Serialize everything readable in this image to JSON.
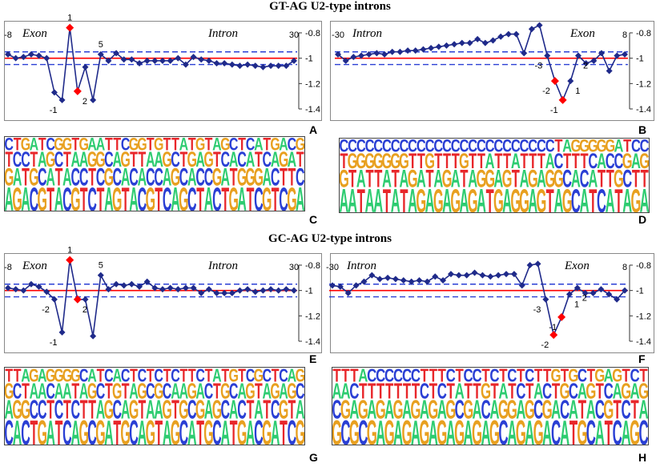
{
  "titles": {
    "top": "GT-AG U2-type introns",
    "bottom": "GC-AG U2-type introns"
  },
  "colors": {
    "line": "#1f2a8a",
    "marker": "#1f2a8a",
    "highlight": "#ff0000",
    "mean_line": "#ff0000",
    "band": "#2a3fd4",
    "A": "#2ecc71",
    "C": "#2a3fd4",
    "G": "#e8a020",
    "T": "#e8262a"
  },
  "chart_data": [
    {
      "panel": "A",
      "type": "line",
      "region_left": "Exon",
      "region_right": "Intron",
      "ylim": [
        -1.4,
        -0.8
      ],
      "yticks": [
        -0.8,
        -1,
        -1.2,
        -1.4
      ],
      "mean": -1.0,
      "band": [
        -0.95,
        -1.05
      ],
      "x": [
        -8,
        -7,
        -6,
        -5,
        -4,
        -3,
        -2,
        -1,
        1,
        2,
        3,
        4,
        5,
        6,
        7,
        8,
        9,
        10,
        11,
        12,
        13,
        14,
        15,
        16,
        17,
        18,
        19,
        20,
        21,
        22,
        23,
        24,
        25,
        26,
        27,
        28,
        29,
        30
      ],
      "y": [
        -0.97,
        -1.0,
        -0.99,
        -0.97,
        -0.98,
        -1.0,
        -1.27,
        -1.33,
        -0.76,
        -1.26,
        -1.07,
        -1.33,
        -0.97,
        -1.02,
        -0.96,
        -1.01,
        -1.01,
        -1.04,
        -1.02,
        -1.02,
        -1.02,
        -1.02,
        -1.0,
        -1.05,
        -0.99,
        -1.01,
        -1.02,
        -1.04,
        -1.04,
        -1.05,
        -1.06,
        -1.05,
        -1.06,
        -1.07,
        -1.06,
        -1.06,
        -1.06,
        -1.02
      ],
      "highlighted_x": [
        1,
        2
      ],
      "point_labels": [
        {
          "x": -8,
          "text": "-8"
        },
        {
          "x": -1,
          "text": "-1"
        },
        {
          "x": 1,
          "text": "1"
        },
        {
          "x": 2,
          "text": "2"
        },
        {
          "x": 5,
          "text": "5"
        },
        {
          "x": 30,
          "text": "30"
        }
      ]
    },
    {
      "panel": "B",
      "type": "line",
      "region_left": "Intron",
      "region_right": "Exon",
      "ylim": [
        -1.4,
        -0.8
      ],
      "yticks": [
        -0.8,
        -1,
        -1.2,
        -1.4
      ],
      "mean": -1.0,
      "band": [
        -0.95,
        -1.05
      ],
      "x": [
        -30,
        -29,
        -28,
        -27,
        -26,
        -25,
        -24,
        -23,
        -22,
        -21,
        -20,
        -19,
        -18,
        -17,
        -16,
        -15,
        -14,
        -13,
        -12,
        -11,
        -10,
        -9,
        -8,
        -7,
        -6,
        -5,
        -4,
        -3,
        -2,
        -1,
        1,
        2,
        3,
        4,
        5,
        6,
        7,
        8
      ],
      "y": [
        -0.97,
        -1.02,
        -0.99,
        -0.98,
        -0.97,
        -0.96,
        -0.97,
        -0.95,
        -0.95,
        -0.94,
        -0.94,
        -0.93,
        -0.92,
        -0.91,
        -0.9,
        -0.89,
        -0.88,
        -0.88,
        -0.85,
        -0.88,
        -0.86,
        -0.83,
        -0.81,
        -0.81,
        -0.96,
        -0.77,
        -0.74,
        -0.98,
        -1.18,
        -1.33,
        -1.18,
        -0.98,
        -1.04,
        -1.02,
        -0.96,
        -1.1,
        -0.98,
        -0.97
      ],
      "highlighted_x": [
        -2,
        -1
      ],
      "point_labels": [
        {
          "x": -30,
          "text": "-30"
        },
        {
          "x": -3,
          "text": "-3"
        },
        {
          "x": -2,
          "text": "-2"
        },
        {
          "x": -1,
          "text": "-1"
        },
        {
          "x": 1,
          "text": "1"
        },
        {
          "x": 2,
          "text": "2"
        },
        {
          "x": 8,
          "text": "8"
        }
      ]
    },
    {
      "panel": "E",
      "type": "line",
      "region_left": "Exon",
      "region_right": "Intron",
      "ylim": [
        -1.4,
        -0.8
      ],
      "yticks": [
        -0.8,
        -1,
        -1.2,
        -1.4
      ],
      "mean": -1.0,
      "band": [
        -0.95,
        -1.05
      ],
      "x": [
        -8,
        -7,
        -6,
        -5,
        -4,
        -3,
        -2,
        -1,
        1,
        2,
        3,
        4,
        5,
        6,
        7,
        8,
        9,
        10,
        11,
        12,
        13,
        14,
        15,
        16,
        17,
        18,
        19,
        20,
        21,
        22,
        23,
        24,
        25,
        26,
        27,
        28,
        29,
        30
      ],
      "y": [
        -0.98,
        -0.99,
        -1.0,
        -0.95,
        -0.97,
        -1.01,
        -1.07,
        -1.33,
        -0.76,
        -1.07,
        -1.07,
        -1.36,
        -0.88,
        -0.99,
        -0.95,
        -0.96,
        -0.95,
        -0.97,
        -0.93,
        -0.98,
        -0.99,
        -0.98,
        -0.99,
        -0.98,
        -0.98,
        -1.02,
        -0.99,
        -1.02,
        -1.02,
        -1.02,
        -1.0,
        -0.99,
        -1.01,
        -1.0,
        -0.99,
        -1.0,
        -0.99,
        -1.0
      ],
      "highlighted_x": [
        1,
        2
      ],
      "point_labels": [
        {
          "x": -8,
          "text": "-8"
        },
        {
          "x": -2,
          "text": "-2"
        },
        {
          "x": -1,
          "text": "-1"
        },
        {
          "x": 1,
          "text": "1"
        },
        {
          "x": 2,
          "text": "2"
        },
        {
          "x": 5,
          "text": "5"
        },
        {
          "x": 30,
          "text": "30"
        }
      ]
    },
    {
      "panel": "F",
      "type": "line",
      "region_left": "Intron",
      "region_right": "Exon",
      "ylim": [
        -1.4,
        -0.8
      ],
      "yticks": [
        -0.8,
        -1,
        -1.2,
        -1.4
      ],
      "mean": -1.0,
      "band": [
        -0.95,
        -1.05
      ],
      "x": [
        -30,
        -29,
        -28,
        -27,
        -26,
        -25,
        -24,
        -23,
        -22,
        -21,
        -20,
        -19,
        -18,
        -17,
        -16,
        -15,
        -14,
        -13,
        -12,
        -11,
        -10,
        -9,
        -8,
        -7,
        -6,
        -5,
        -4,
        -3,
        -2,
        -1,
        1,
        2,
        3,
        4,
        5,
        6,
        7,
        8
      ],
      "y": [
        -0.96,
        -0.97,
        -1.02,
        -0.96,
        -0.93,
        -0.88,
        -0.91,
        -0.9,
        -0.91,
        -0.92,
        -0.93,
        -0.92,
        -0.93,
        -0.89,
        -0.92,
        -0.87,
        -0.88,
        -0.88,
        -0.86,
        -0.88,
        -0.89,
        -0.88,
        -0.87,
        -0.87,
        -0.96,
        -0.8,
        -0.79,
        -1.07,
        -1.35,
        -1.21,
        -1.03,
        -0.98,
        -1.02,
        -1.02,
        -0.99,
        -1.03,
        -1.07,
        -1.0
      ],
      "highlighted_x": [
        -2,
        -1
      ],
      "point_labels": [
        {
          "x": -30,
          "text": "-30"
        },
        {
          "x": -3,
          "text": "-3"
        },
        {
          "x": -2,
          "text": "-2"
        },
        {
          "x": -1,
          "text": "-1"
        },
        {
          "x": 1,
          "text": "1"
        },
        {
          "x": 2,
          "text": "2"
        },
        {
          "x": 8,
          "text": "8"
        }
      ]
    }
  ],
  "logos": [
    {
      "panel": "C",
      "positions": [
        [
          "A",
          "G",
          "T",
          "C"
        ],
        [
          "G",
          "A",
          "C",
          "T"
        ],
        [
          "A",
          "T",
          "C",
          "G"
        ],
        [
          "C",
          "G",
          "T",
          "A"
        ],
        [
          "G",
          "C",
          "A",
          "T"
        ],
        [
          "T",
          "A",
          "G",
          "C"
        ],
        [
          "A",
          "T",
          "C",
          "G"
        ],
        [
          "C",
          "A",
          "T",
          "G"
        ],
        [
          "G",
          "C",
          "A",
          "T"
        ],
        [
          "T",
          "C",
          "A",
          "G"
        ],
        [
          "C",
          "T",
          "G",
          "A"
        ],
        [
          "T",
          "C",
          "G",
          "A"
        ],
        [
          "A",
          "G",
          "C",
          "T"
        ],
        [
          "G",
          "C",
          "A",
          "T"
        ],
        [
          "T",
          "A",
          "G",
          "C"
        ],
        [
          "A",
          "C",
          "T",
          "G"
        ],
        [
          "C",
          "A",
          "T",
          "G"
        ],
        [
          "G",
          "C",
          "A",
          "T"
        ],
        [
          "T",
          "C",
          "A",
          "G"
        ],
        [
          "C",
          "A",
          "G",
          "T"
        ],
        [
          "A",
          "G",
          "C",
          "T"
        ],
        [
          "G",
          "C",
          "T",
          "A"
        ],
        [
          "C",
          "A",
          "G",
          "T"
        ],
        [
          "T",
          "C",
          "A",
          "G"
        ],
        [
          "A",
          "C",
          "G",
          "T"
        ],
        [
          "C",
          "G",
          "T",
          "A"
        ],
        [
          "T",
          "A",
          "C",
          "G"
        ],
        [
          "G",
          "T",
          "A",
          "C"
        ],
        [
          "A",
          "G",
          "C",
          "T"
        ],
        [
          "T",
          "G",
          "A",
          "C"
        ],
        [
          "C",
          "G",
          "T",
          "A"
        ],
        [
          "G",
          "A",
          "C",
          "T"
        ],
        [
          "T",
          "C",
          "A",
          "G"
        ],
        [
          "C",
          "T",
          "G",
          "A"
        ],
        [
          "G",
          "T",
          "A",
          "C"
        ],
        [
          "A",
          "C",
          "T",
          "G"
        ]
      ]
    },
    {
      "panel": "D",
      "positions": [
        [
          "A",
          "G",
          "T",
          "C"
        ],
        [
          "A",
          "T",
          "G",
          "C"
        ],
        [
          "T",
          "A",
          "G",
          "C"
        ],
        [
          "A",
          "T",
          "G",
          "C"
        ],
        [
          "A",
          "T",
          "G",
          "C"
        ],
        [
          "T",
          "A",
          "G",
          "C"
        ],
        [
          "A",
          "T",
          "G",
          "C"
        ],
        [
          "T",
          "A",
          "G",
          "C"
        ],
        [
          "A",
          "G",
          "T",
          "C"
        ],
        [
          "G",
          "A",
          "T",
          "C"
        ],
        [
          "A",
          "T",
          "G",
          "C"
        ],
        [
          "G",
          "A",
          "T",
          "C"
        ],
        [
          "A",
          "G",
          "T",
          "C"
        ],
        [
          "G",
          "A",
          "T",
          "C"
        ],
        [
          "A",
          "T",
          "G",
          "C"
        ],
        [
          "G",
          "A",
          "T",
          "C"
        ],
        [
          "A",
          "G",
          "T",
          "C"
        ],
        [
          "T",
          "G",
          "A",
          "C"
        ],
        [
          "G",
          "A",
          "T",
          "C"
        ],
        [
          "A",
          "G",
          "T",
          "C"
        ],
        [
          "G",
          "T",
          "A",
          "C"
        ],
        [
          "G",
          "A",
          "T",
          "C"
        ],
        [
          "A",
          "G",
          "T",
          "C"
        ],
        [
          "G",
          "A",
          "T",
          "C"
        ],
        [
          "T",
          "G",
          "A",
          "C"
        ],
        [
          "A",
          "G",
          "C",
          "T"
        ],
        [
          "G",
          "C",
          "T",
          "A"
        ],
        [
          "C",
          "A",
          "T",
          "G"
        ],
        [
          "A",
          "C",
          "T",
          "G"
        ],
        [
          "T",
          "A",
          "C",
          "G"
        ],
        [
          "C",
          "T",
          "A",
          "G"
        ],
        [
          "A",
          "T",
          "C",
          "G"
        ],
        [
          "T",
          "G",
          "C",
          "A"
        ],
        [
          "A",
          "C",
          "G",
          "T"
        ],
        [
          "G",
          "T",
          "A",
          "C"
        ],
        [
          "A",
          "T",
          "G",
          "C"
        ]
      ]
    },
    {
      "panel": "G",
      "positions": [
        [
          "C",
          "A",
          "G",
          "T"
        ],
        [
          "A",
          "G",
          "C",
          "T"
        ],
        [
          "C",
          "G",
          "T",
          "A"
        ],
        [
          "T",
          "C",
          "A",
          "G"
        ],
        [
          "G",
          "C",
          "A",
          "A"
        ],
        [
          "A",
          "T",
          "C",
          "G"
        ],
        [
          "T",
          "C",
          "A",
          "G"
        ],
        [
          "C",
          "T",
          "A",
          "G"
        ],
        [
          "A",
          "C",
          "T",
          "G"
        ],
        [
          "G",
          "T",
          "A",
          "C"
        ],
        [
          "C",
          "T",
          "G",
          "A"
        ],
        [
          "G",
          "A",
          "C",
          "T"
        ],
        [
          "A",
          "G",
          "T",
          "C"
        ],
        [
          "T",
          "C",
          "G",
          "A"
        ],
        [
          "G",
          "A",
          "T",
          "C"
        ],
        [
          "C",
          "G",
          "A",
          "T"
        ],
        [
          "A",
          "T",
          "G",
          "C"
        ],
        [
          "G",
          "A",
          "C",
          "T"
        ],
        [
          "T",
          "A",
          "G",
          "C"
        ],
        [
          "A",
          "G",
          "C",
          "T"
        ],
        [
          "G",
          "T",
          "A",
          "C"
        ],
        [
          "C",
          "G",
          "A",
          "T"
        ],
        [
          "A",
          "C",
          "G",
          "T"
        ],
        [
          "T",
          "G",
          "A",
          "C"
        ],
        [
          "G",
          "A",
          "C",
          "T"
        ],
        [
          "C",
          "G",
          "T",
          "A"
        ],
        [
          "A",
          "C",
          "G",
          "T"
        ],
        [
          "T",
          "A",
          "C",
          "G"
        ],
        [
          "G",
          "C",
          "A",
          "T"
        ],
        [
          "A",
          "T",
          "G",
          "C"
        ],
        [
          "C",
          "A",
          "T",
          "G"
        ],
        [
          "G",
          "T",
          "A",
          "C"
        ],
        [
          "A",
          "C",
          "G",
          "T"
        ],
        [
          "T",
          "G",
          "A",
          "C"
        ],
        [
          "C",
          "T",
          "G",
          "A"
        ],
        [
          "G",
          "A",
          "C",
          "G"
        ]
      ]
    },
    {
      "panel": "H",
      "positions": [
        [
          "G",
          "C",
          "A",
          "T"
        ],
        [
          "C",
          "G",
          "A",
          "T"
        ],
        [
          "G",
          "A",
          "C",
          "T"
        ],
        [
          "C",
          "G",
          "T",
          "A"
        ],
        [
          "G",
          "A",
          "T",
          "C"
        ],
        [
          "A",
          "G",
          "T",
          "C"
        ],
        [
          "G",
          "A",
          "T",
          "C"
        ],
        [
          "A",
          "G",
          "T",
          "C"
        ],
        [
          "G",
          "A",
          "T",
          "C"
        ],
        [
          "A",
          "G",
          "T",
          "C"
        ],
        [
          "G",
          "A",
          "C",
          "T"
        ],
        [
          "A",
          "G",
          "T",
          "T"
        ],
        [
          "G",
          "A",
          "C",
          "T"
        ],
        [
          "A",
          "G",
          "T",
          "C"
        ],
        [
          "G",
          "C",
          "A",
          "T"
        ],
        [
          "A",
          "G",
          "T",
          "C"
        ],
        [
          "G",
          "A",
          "T",
          "C"
        ],
        [
          "A",
          "C",
          "G",
          "T"
        ],
        [
          "G",
          "A",
          "T",
          "C"
        ],
        [
          "C",
          "G",
          "A",
          "T"
        ],
        [
          "A",
          "G",
          "T",
          "C"
        ],
        [
          "G",
          "A",
          "C",
          "T"
        ],
        [
          "A",
          "G",
          "T",
          "C"
        ],
        [
          "G",
          "C",
          "A",
          "T"
        ],
        [
          "A",
          "G",
          "C",
          "T"
        ],
        [
          "C",
          "A",
          "T",
          "G"
        ],
        [
          "A",
          "C",
          "G",
          "T"
        ],
        [
          "T",
          "A",
          "C",
          "G"
        ],
        [
          "G",
          "T",
          "A",
          "C"
        ],
        [
          "C",
          "A",
          "G",
          "T"
        ],
        [
          "A",
          "C",
          "T",
          "G"
        ],
        [
          "T",
          "G",
          "C",
          "A"
        ],
        [
          "C",
          "T",
          "A",
          "G"
        ],
        [
          "A",
          "C",
          "G",
          "T"
        ],
        [
          "G",
          "T",
          "A",
          "C"
        ],
        [
          "C",
          "A",
          "G",
          "T"
        ]
      ]
    }
  ],
  "panel_letters": [
    "A",
    "B",
    "C",
    "D",
    "E",
    "F",
    "G",
    "H"
  ]
}
